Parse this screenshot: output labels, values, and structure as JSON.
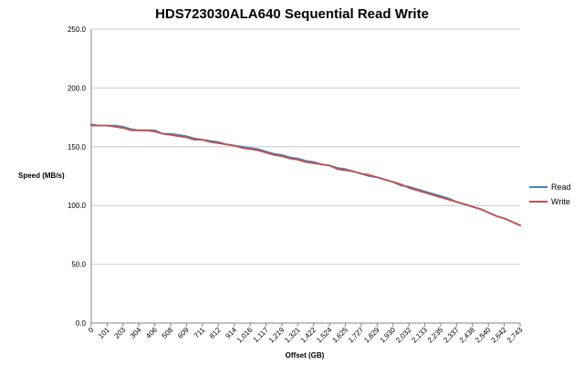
{
  "chart_data": {
    "type": "line",
    "title": "HDS723030ALA640 Sequential Read Write",
    "xlabel": "Offset (GB)",
    "ylabel": "Speed (MB/s)",
    "ylim": [
      0,
      250
    ],
    "yticks": [
      "0.0",
      "50.0",
      "100.0",
      "150.0",
      "200.0",
      "250.0"
    ],
    "grid": "horizontal",
    "legend_position": "right",
    "x_labels": [
      "0",
      "101",
      "203",
      "304",
      "406",
      "508",
      "609",
      "711",
      "812",
      "914",
      "1,016",
      "1,117",
      "1,219",
      "1,321",
      "1,422",
      "1,524",
      "1,625",
      "1,727",
      "1,829",
      "1,930",
      "2,032",
      "2,133",
      "2,235",
      "2,337",
      "2,438",
      "2,540",
      "2,642",
      "2,743"
    ],
    "x": [
      0,
      50,
      101,
      152,
      203,
      254,
      304,
      355,
      406,
      457,
      508,
      559,
      609,
      660,
      711,
      762,
      812,
      863,
      914,
      965,
      1016,
      1067,
      1117,
      1168,
      1219,
      1270,
      1321,
      1372,
      1422,
      1473,
      1524,
      1575,
      1625,
      1676,
      1727,
      1778,
      1829,
      1880,
      1930,
      1981,
      2032,
      2083,
      2133,
      2184,
      2235,
      2286,
      2337,
      2388,
      2438,
      2489,
      2540,
      2591,
      2642,
      2693,
      2743
    ],
    "series": [
      {
        "name": "Read",
        "color": "#4f81bd",
        "values": [
          169,
          168,
          168,
          168,
          167,
          165,
          164,
          164,
          164,
          161,
          161,
          160,
          159,
          157,
          156,
          155,
          154,
          152,
          151,
          150,
          149,
          148,
          146,
          144,
          143,
          141,
          140,
          138,
          137,
          135,
          134,
          132,
          131,
          129,
          127,
          125,
          124,
          122,
          120,
          117,
          116,
          114,
          112,
          110,
          108,
          106,
          103,
          101,
          99,
          97,
          94,
          91,
          89,
          86,
          83
        ]
      },
      {
        "name": "Write",
        "color": "#c0504d",
        "values": [
          168,
          168,
          168,
          167,
          166,
          164,
          164,
          164,
          163,
          161,
          160,
          159,
          158,
          156,
          156,
          154,
          153,
          152,
          151,
          149,
          148,
          147,
          145,
          143,
          142,
          140,
          139,
          137,
          136,
          135,
          134,
          131,
          130,
          129,
          127,
          126,
          124,
          122,
          120,
          118,
          115,
          113,
          111,
          109,
          107,
          105,
          103,
          101,
          99,
          97,
          94,
          91,
          89,
          86,
          83
        ]
      }
    ]
  }
}
